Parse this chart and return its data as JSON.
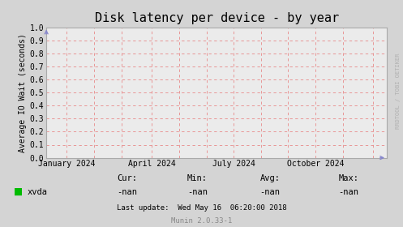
{
  "title": "Disk latency per device - by year",
  "ylabel": "Average IO Wait (seconds)",
  "ylim": [
    0.0,
    1.0
  ],
  "yticks": [
    0.0,
    0.1,
    0.2,
    0.3,
    0.4,
    0.5,
    0.6,
    0.7,
    0.8,
    0.9,
    1.0
  ],
  "xtick_labels": [
    "January 2024",
    "April 2024",
    "July 2024",
    "October 2024"
  ],
  "xtick_positions": [
    0.06,
    0.31,
    0.55,
    0.79
  ],
  "bg_color": "#d4d4d4",
  "plot_bg_color": "#ebebeb",
  "grid_minor_color": "#f0b0b0",
  "grid_major_color": "#e88888",
  "border_color": "#aaaaaa",
  "legend_label": "xvda",
  "legend_color": "#00bb00",
  "cur_label": "Cur:",
  "cur_val": "-nan",
  "min_label": "Min:",
  "min_val": "-nan",
  "avg_label": "Avg:",
  "avg_val": "-nan",
  "max_label": "Max:",
  "max_val": "-nan",
  "last_update": "Last update:  Wed May 16  06:20:00 2018",
  "munin_label": "Munin 2.0.33-1",
  "watermark": "RRDTOOL / TOBI OETIKER",
  "title_fontsize": 11,
  "axis_fontsize": 7,
  "tick_fontsize": 7,
  "legend_fontsize": 7.5,
  "small_fontsize": 6.5,
  "watermark_fontsize": 5,
  "arrow_color": "#8888cc"
}
